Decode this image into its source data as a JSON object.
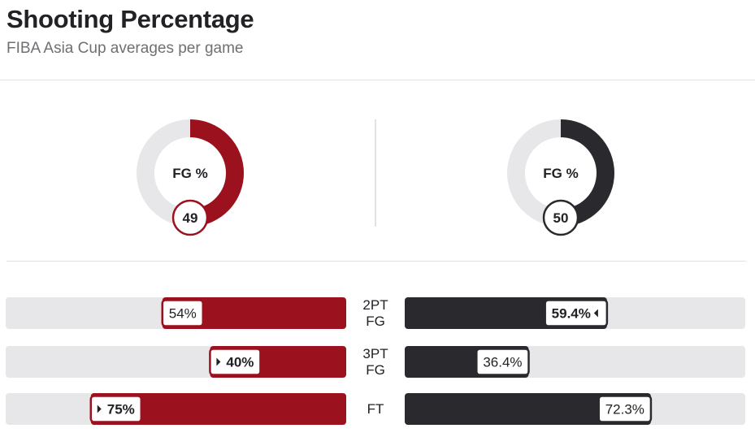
{
  "header": {
    "title": "Shooting Percentage",
    "subtitle": "FIBA Asia Cup averages per game"
  },
  "colors": {
    "team1": "#9b111e",
    "team2": "#2a2a2e",
    "track": "#e7e7ea"
  },
  "chart_data": [
    {
      "type": "donut",
      "metric": "FG %",
      "teams": [
        {
          "value": 49,
          "label": "49",
          "color": "#9b111e"
        },
        {
          "value": 50,
          "label": "50",
          "color": "#2a2a2e"
        }
      ]
    },
    {
      "type": "bar",
      "orientation": "horizontal-mirrored",
      "categories": [
        "2PT FG",
        "3PT FG",
        "FT"
      ],
      "category_lines": [
        [
          "2PT",
          "FG"
        ],
        [
          "3PT",
          "FG"
        ],
        [
          "FT"
        ]
      ],
      "xlim": [
        0,
        100
      ],
      "series": [
        {
          "values": [
            54,
            40,
            75
          ],
          "labels": [
            "54%",
            "40%",
            "75%"
          ],
          "leader": [
            false,
            true,
            true
          ],
          "color": "#9b111e"
        },
        {
          "values": [
            59.4,
            36.4,
            72.3
          ],
          "labels": [
            "59.4%",
            "36.4%",
            "72.3%"
          ],
          "leader": [
            true,
            false,
            false
          ],
          "color": "#2a2a2e"
        }
      ]
    }
  ]
}
